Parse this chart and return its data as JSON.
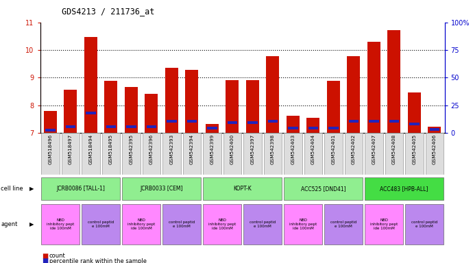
{
  "title": "GDS4213 / 211736_at",
  "samples": [
    "GSM518496",
    "GSM518497",
    "GSM518494",
    "GSM518495",
    "GSM542395",
    "GSM542396",
    "GSM542393",
    "GSM542394",
    "GSM542399",
    "GSM542400",
    "GSM542397",
    "GSM542398",
    "GSM542403",
    "GSM542404",
    "GSM542401",
    "GSM542402",
    "GSM542407",
    "GSM542408",
    "GSM542405",
    "GSM542406"
  ],
  "red_values": [
    7.78,
    8.55,
    10.47,
    8.88,
    8.65,
    8.4,
    9.35,
    9.27,
    7.32,
    8.9,
    8.92,
    9.78,
    7.62,
    7.55,
    8.88,
    9.78,
    10.3,
    10.73,
    8.45,
    7.22
  ],
  "blue_values": [
    0.1,
    0.1,
    0.08,
    0.1,
    0.1,
    0.1,
    0.1,
    0.1,
    0.1,
    0.1,
    0.1,
    0.1,
    0.1,
    0.1,
    0.1,
    0.1,
    0.1,
    0.1,
    0.1,
    0.1
  ],
  "blue_positions": [
    7.05,
    7.18,
    7.68,
    7.18,
    7.18,
    7.18,
    7.38,
    7.38,
    7.12,
    7.32,
    7.32,
    7.38,
    7.12,
    7.12,
    7.12,
    7.38,
    7.38,
    7.38,
    7.28,
    7.08
  ],
  "ymin": 7,
  "ymax": 11,
  "yticks_left": [
    7,
    8,
    9,
    10,
    11
  ],
  "yticks_right": [
    0,
    25,
    50,
    75,
    100
  ],
  "cell_lines": [
    {
      "label": "JCRB0086 [TALL-1]",
      "start": 0,
      "end": 4,
      "color": "#90EE90"
    },
    {
      "label": "JCRB0033 [CEM]",
      "start": 4,
      "end": 8,
      "color": "#90EE90"
    },
    {
      "label": "KOPT-K",
      "start": 8,
      "end": 12,
      "color": "#90EE90"
    },
    {
      "label": "ACC525 [DND41]",
      "start": 12,
      "end": 16,
      "color": "#90EE90"
    },
    {
      "label": "ACC483 [HPB-ALL]",
      "start": 16,
      "end": 20,
      "color": "#44DD44"
    }
  ],
  "agents": [
    {
      "label": "NBD\ninhibitory pept\nide 100mM",
      "start": 0,
      "end": 2,
      "color": "#FF88FF"
    },
    {
      "label": "control peptid\ne 100mM",
      "start": 2,
      "end": 4,
      "color": "#BB88EE"
    },
    {
      "label": "NBD\ninhibitory pept\nide 100mM",
      "start": 4,
      "end": 6,
      "color": "#FF88FF"
    },
    {
      "label": "control peptid\ne 100mM",
      "start": 6,
      "end": 8,
      "color": "#BB88EE"
    },
    {
      "label": "NBD\ninhibitory pept\nide 100mM",
      "start": 8,
      "end": 10,
      "color": "#FF88FF"
    },
    {
      "label": "control peptid\ne 100mM",
      "start": 10,
      "end": 12,
      "color": "#BB88EE"
    },
    {
      "label": "NBD\ninhibitory pept\nide 100mM",
      "start": 12,
      "end": 14,
      "color": "#FF88FF"
    },
    {
      "label": "control peptid\ne 100mM",
      "start": 14,
      "end": 16,
      "color": "#BB88EE"
    },
    {
      "label": "NBD\ninhibitory pept\nide 100mM",
      "start": 16,
      "end": 18,
      "color": "#FF88FF"
    },
    {
      "label": "control peptid\ne 100mM",
      "start": 18,
      "end": 20,
      "color": "#BB88EE"
    }
  ],
  "bar_color": "#CC1100",
  "blue_color": "#2222BB",
  "background_color": "#FFFFFF",
  "left_axis_color": "#CC1100",
  "right_axis_color": "#0000CC",
  "label_bg_color": "#DDDDDD"
}
